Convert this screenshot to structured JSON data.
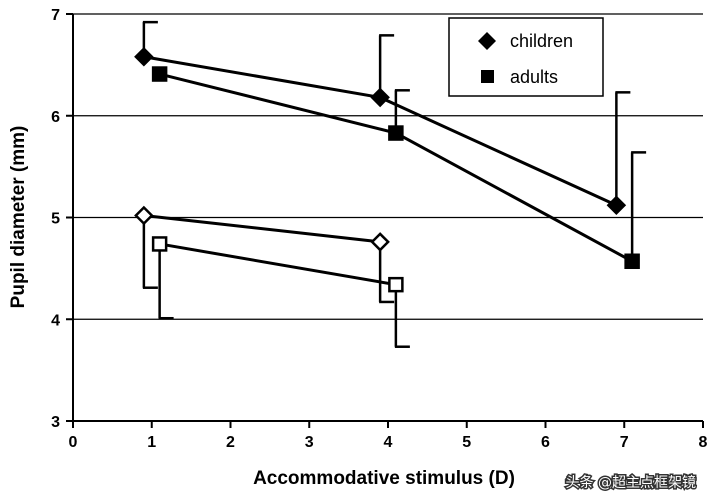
{
  "chart_data": {
    "type": "line",
    "title": "",
    "xlabel": "Accommodative stimulus (D)",
    "ylabel": "Pupil diameter (mm)",
    "xlim": [
      0,
      8
    ],
    "ylim": [
      3,
      7
    ],
    "xticks": [
      "0",
      "1",
      "2",
      "3",
      "4",
      "5",
      "6",
      "7",
      "8"
    ],
    "yticks": [
      "3",
      "4",
      "5",
      "6",
      "7"
    ],
    "grid": "horizontal",
    "legend": {
      "position": "top-right",
      "entries": [
        {
          "label": "children",
          "marker": "diamond"
        },
        {
          "label": "adults",
          "marker": "square"
        }
      ]
    },
    "series": [
      {
        "name": "children",
        "marker": "diamond",
        "filled": true,
        "x": [
          0.9,
          3.9,
          6.9
        ],
        "y": [
          6.58,
          6.18,
          5.12
        ],
        "error_to": [
          6.92,
          6.79,
          6.23
        ]
      },
      {
        "name": "adults",
        "marker": "square",
        "filled": true,
        "x": [
          1.1,
          4.1,
          7.1
        ],
        "y": [
          6.41,
          5.83,
          4.57
        ],
        "error_to": [
          6.41,
          6.25,
          5.64
        ]
      },
      {
        "name": "children (open)",
        "marker": "diamond",
        "filled": false,
        "x": [
          0.9,
          3.9
        ],
        "y": [
          5.02,
          4.76
        ],
        "error_to": [
          4.31,
          4.17
        ]
      },
      {
        "name": "adults (open)",
        "marker": "square",
        "filled": false,
        "x": [
          1.1,
          4.1
        ],
        "y": [
          4.74,
          4.34
        ],
        "error_to": [
          4.01,
          3.73
        ]
      }
    ]
  },
  "watermark": "头条 @超主点框架镜"
}
